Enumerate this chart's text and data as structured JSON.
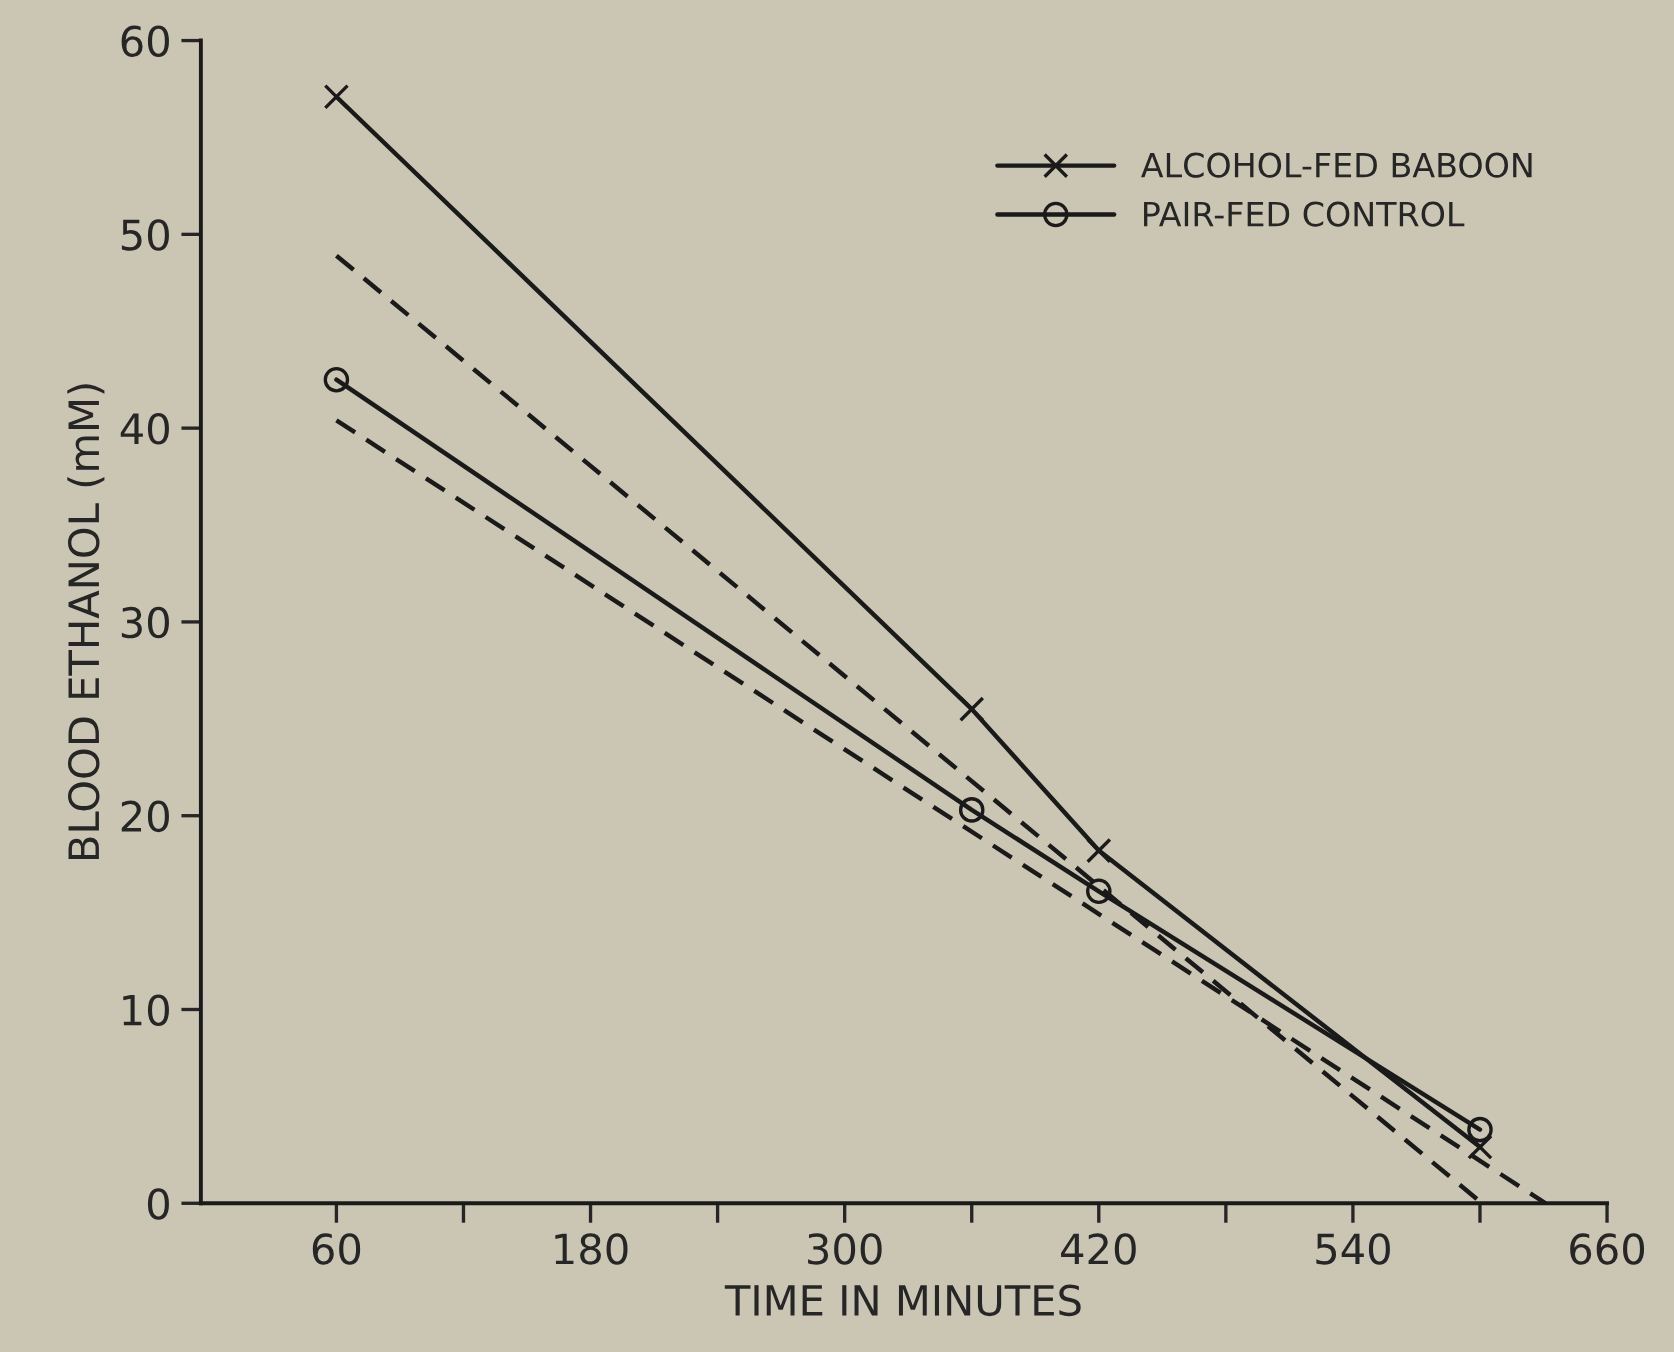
{
  "chart_data": {
    "type": "line",
    "xlabel": "TIME IN MINUTES",
    "ylabel": "BLOOD ETHANOL (mM)",
    "series": [
      {
        "name": "ALCOHOL-FED BABOON",
        "color": "#1a1a1a",
        "marker": "cross",
        "line_style": "solid",
        "x": [
          60,
          360,
          420,
          600
        ],
        "values": [
          57.1,
          25.5,
          18.2,
          2.9
        ]
      },
      {
        "name": "PAIR-FED CONTROL",
        "color": "#1a1a1a",
        "marker": "circle",
        "line_style": "solid",
        "x": [
          60,
          360,
          420,
          600
        ],
        "values": [
          42.5,
          20.3,
          16.1,
          3.8
        ]
      },
      {
        "color": "#1a1a1a",
        "marker": "none",
        "line_style": "dashed",
        "x": [
          60,
          601
        ],
        "values": [
          48.9,
          0
        ]
      },
      {
        "color": "#1a1a1a",
        "marker": "none",
        "line_style": "dashed",
        "x": [
          60,
          631
        ],
        "values": [
          40.4,
          0
        ]
      }
    ],
    "xlim": [
      -4,
      660
    ],
    "ylim": [
      0,
      60
    ],
    "xticks": [
      60,
      {
        "value": 120,
        "label": null
      },
      180,
      {
        "value": 240,
        "label": null
      },
      300,
      {
        "value": 360,
        "label": null
      },
      420,
      {
        "value": 480,
        "label": null
      },
      540,
      {
        "value": 600,
        "label": null
      },
      660
    ],
    "yticks": [
      0,
      10,
      20,
      30,
      40,
      50,
      60
    ],
    "grid": false,
    "legend": "top right"
  }
}
